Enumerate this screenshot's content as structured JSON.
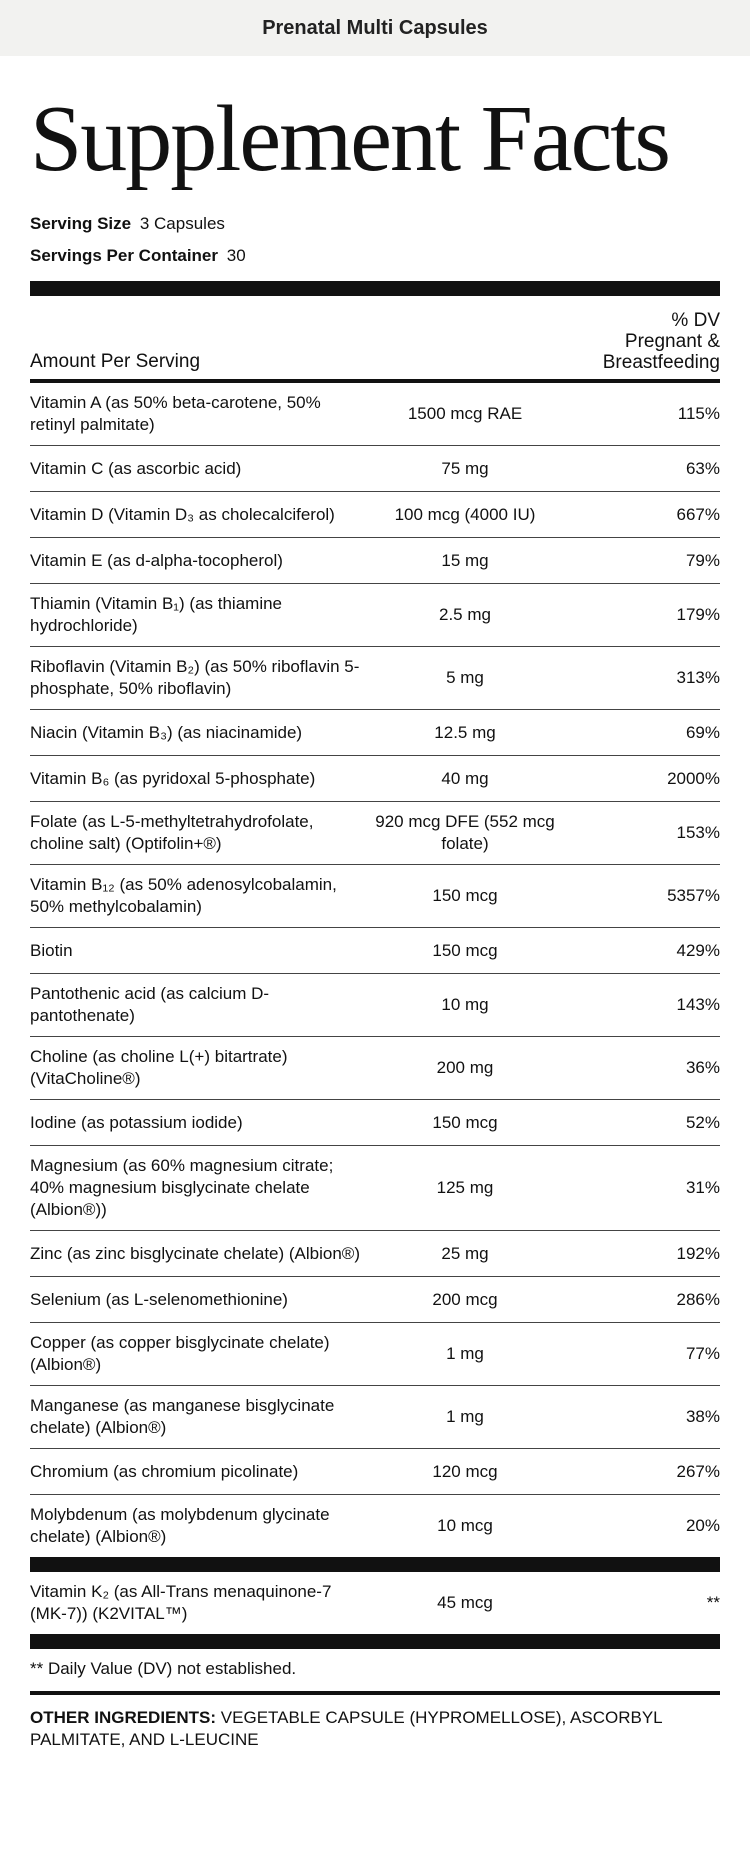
{
  "header": {
    "product": "Prenatal Multi Capsules"
  },
  "title": "Supplement Facts",
  "serving": {
    "size_label": "Serving Size",
    "size_value": "3 Capsules",
    "per_container_label": "Servings Per Container",
    "per_container_value": "30"
  },
  "table_header": {
    "amount": "Amount Per Serving",
    "dv_line1": "% DV",
    "dv_line2": "Pregnant &",
    "dv_line3": "Breastfeeding"
  },
  "rows": [
    {
      "name": "Vitamin A (as 50% beta-carotene, 50% retinyl palmitate)",
      "amount": "1500 mcg RAE",
      "dv": "115%"
    },
    {
      "name": "Vitamin C (as ascorbic acid)",
      "amount": "75 mg",
      "dv": "63%"
    },
    {
      "name": "Vitamin D (Vitamin D₃ as cholecalciferol)",
      "amount": "100 mcg (4000 IU)",
      "dv": "667%"
    },
    {
      "name": "Vitamin E (as d-alpha-tocopherol)",
      "amount": "15 mg",
      "dv": "79%"
    },
    {
      "name": "Thiamin (Vitamin B₁) (as thiamine hydrochloride)",
      "amount": "2.5 mg",
      "dv": "179%"
    },
    {
      "name": "Riboflavin (Vitamin B₂) (as 50% riboflavin 5-phosphate, 50% riboflavin)",
      "amount": "5 mg",
      "dv": "313%"
    },
    {
      "name": "Niacin (Vitamin B₃) (as niacinamide)",
      "amount": "12.5 mg",
      "dv": "69%"
    },
    {
      "name": "Vitamin B₆ (as pyridoxal 5-phosphate)",
      "amount": "40 mg",
      "dv": "2000%"
    },
    {
      "name": "Folate (as L-5-methyltetrahydrofolate, choline salt) (Optifolin+®)",
      "amount": "920 mcg DFE (552 mcg folate)",
      "dv": "153%"
    },
    {
      "name": "Vitamin B₁₂ (as 50% adenosylcobalamin, 50% methylcobalamin)",
      "amount": "150 mcg",
      "dv": "5357%"
    },
    {
      "name": "Biotin",
      "amount": "150 mcg",
      "dv": "429%"
    },
    {
      "name": "Pantothenic acid (as calcium D-pantothenate)",
      "amount": "10 mg",
      "dv": "143%"
    },
    {
      "name": "Choline (as choline L(+) bitartrate) (VitaCholine®)",
      "amount": "200 mg",
      "dv": "36%"
    },
    {
      "name": "Iodine (as potassium iodide)",
      "amount": "150 mcg",
      "dv": "52%"
    },
    {
      "name": "Magnesium (as 60% magnesium citrate; 40% magnesium bisglycinate chelate (Albion®))",
      "amount": "125 mg",
      "dv": "31%"
    },
    {
      "name": "Zinc (as zinc bisglycinate chelate) (Albion®)",
      "amount": "25 mg",
      "dv": "192%"
    },
    {
      "name": "Selenium (as L-selenomethionine)",
      "amount": "200 mcg",
      "dv": "286%"
    },
    {
      "name": "Copper (as copper bisglycinate chelate) (Albion®)",
      "amount": "1 mg",
      "dv": "77%"
    },
    {
      "name": "Manganese (as manganese bisglycinate chelate) (Albion®)",
      "amount": "1 mg",
      "dv": "38%"
    },
    {
      "name": "Chromium (as chromium picolinate)",
      "amount": "120 mcg",
      "dv": "267%"
    },
    {
      "name": "Molybdenum (as molybdenum glycinate chelate) (Albion®)",
      "amount": "10 mcg",
      "dv": "20%"
    }
  ],
  "extra_row": {
    "name": "Vitamin K₂ (as All-Trans menaquinone-7 (MK-7)) (K2VITAL™)",
    "amount": "45 mcg",
    "dv": "**"
  },
  "footnote": "** Daily Value (DV) not established.",
  "other_ingredients": {
    "label": "OTHER INGREDIENTS:",
    "text": "VEGETABLE CAPSULE (HYPROMELLOSE), ASCORBYL PALMITATE, AND L-LEUCINE"
  }
}
